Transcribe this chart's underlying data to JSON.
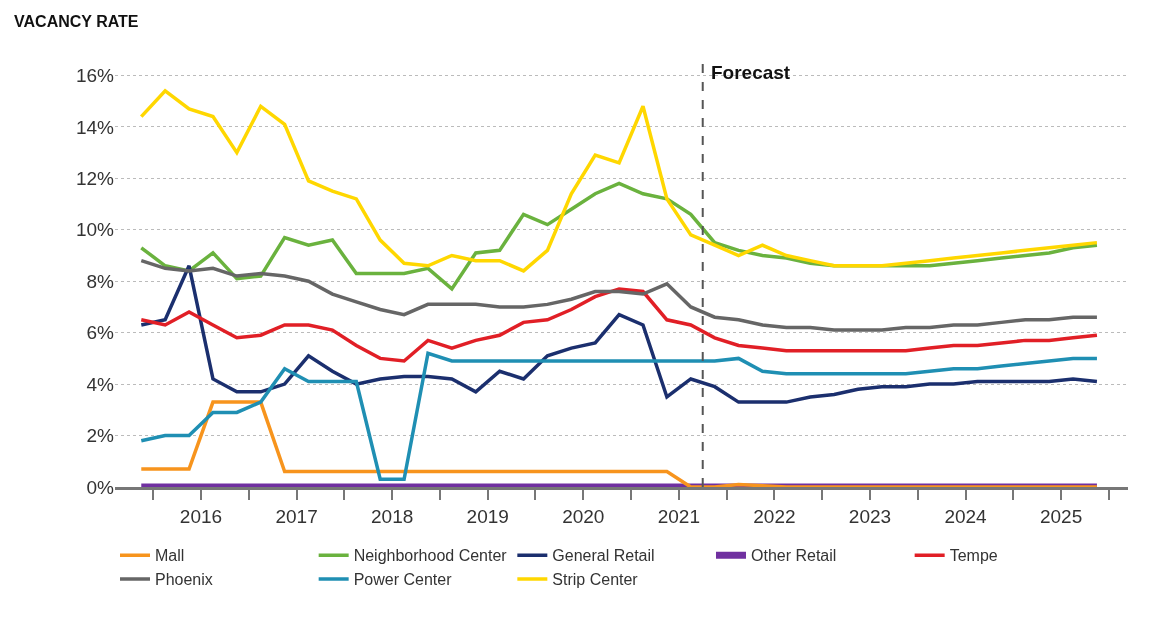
{
  "chart_data": {
    "type": "line",
    "title": "VACANCY RATE",
    "x": [
      2015.875,
      2016.125,
      2016.375,
      2016.625,
      2016.875,
      2017.125,
      2017.375,
      2017.625,
      2017.875,
      2018.125,
      2018.375,
      2018.625,
      2018.875,
      2019.125,
      2019.375,
      2019.625,
      2019.875,
      2020.125,
      2020.375,
      2020.625,
      2020.875,
      2021.125,
      2021.375,
      2021.625,
      2021.875,
      2022.125,
      2022.375,
      2022.625,
      2022.875,
      2023.125,
      2023.375,
      2023.625,
      2023.875,
      2024.125,
      2024.375,
      2024.625,
      2024.875,
      2025.125,
      2025.375,
      2025.625,
      2025.875
    ],
    "series": [
      {
        "name": "Mall",
        "color": "#f7941d",
        "values": [
          0.7,
          0.7,
          0.7,
          3.3,
          3.3,
          3.3,
          0.6,
          0.6,
          0.6,
          0.6,
          0.6,
          0.6,
          0.6,
          0.6,
          0.6,
          0.6,
          0.6,
          0.6,
          0.6,
          0.6,
          0.6,
          0.6,
          0.6,
          0,
          0,
          0.1,
          0.05,
          0,
          0,
          0,
          0,
          0,
          0,
          0,
          0,
          0,
          0,
          0,
          0,
          0,
          0
        ]
      },
      {
        "name": "Neighborhood Center",
        "color": "#6ab23e",
        "values": [
          9.3,
          8.6,
          8.4,
          9.1,
          8.1,
          8.2,
          9.7,
          9.4,
          9.6,
          8.3,
          8.3,
          8.3,
          8.5,
          7.7,
          9.1,
          9.2,
          10.6,
          10.2,
          10.8,
          11.4,
          11.8,
          11.4,
          11.2,
          10.6,
          9.5,
          9.2,
          9.0,
          8.9,
          8.7,
          8.6,
          8.6,
          8.6,
          8.6,
          8.6,
          8.7,
          8.8,
          8.9,
          9.0,
          9.1,
          9.3,
          9.4
        ]
      },
      {
        "name": "General Retail",
        "color": "#1b2f6e",
        "values": [
          6.3,
          6.5,
          8.6,
          4.2,
          3.7,
          3.7,
          4.0,
          5.1,
          4.5,
          4.0,
          4.2,
          4.3,
          4.3,
          4.2,
          3.7,
          4.5,
          4.2,
          5.1,
          5.4,
          5.6,
          6.7,
          6.3,
          3.5,
          4.2,
          3.9,
          3.3,
          3.3,
          3.3,
          3.5,
          3.6,
          3.8,
          3.9,
          3.9,
          4.0,
          4.0,
          4.1,
          4.1,
          4.1,
          4.1,
          4.2,
          4.1
        ]
      },
      {
        "name": "Other Retail",
        "color": "#7030a0",
        "values": [
          0,
          0,
          0,
          0,
          0,
          0,
          0,
          0,
          0,
          0,
          0,
          0,
          0,
          0,
          0,
          0,
          0,
          0,
          0,
          0,
          0,
          0,
          0,
          0,
          0,
          0,
          0,
          0,
          0,
          0,
          0,
          0,
          0,
          0,
          0,
          0,
          0,
          0,
          0,
          0,
          0
        ]
      },
      {
        "name": "Tempe",
        "color": "#e11f26",
        "values": [
          6.5,
          6.3,
          6.8,
          6.3,
          5.8,
          5.9,
          6.3,
          6.3,
          6.1,
          5.5,
          5.0,
          4.9,
          5.7,
          5.4,
          5.7,
          5.9,
          6.4,
          6.5,
          6.9,
          7.4,
          7.7,
          7.6,
          6.5,
          6.3,
          5.8,
          5.5,
          5.4,
          5.3,
          5.3,
          5.3,
          5.3,
          5.3,
          5.3,
          5.4,
          5.5,
          5.5,
          5.6,
          5.7,
          5.7,
          5.8,
          5.9
        ]
      },
      {
        "name": "Phoenix",
        "color": "#666666",
        "values": [
          8.8,
          8.5,
          8.4,
          8.5,
          8.2,
          8.3,
          8.2,
          8.0,
          7.5,
          7.2,
          6.9,
          6.7,
          7.1,
          7.1,
          7.1,
          7.0,
          7.0,
          7.1,
          7.3,
          7.6,
          7.6,
          7.5,
          7.9,
          7.0,
          6.6,
          6.5,
          6.3,
          6.2,
          6.2,
          6.1,
          6.1,
          6.1,
          6.2,
          6.2,
          6.3,
          6.3,
          6.4,
          6.5,
          6.5,
          6.6,
          6.6
        ]
      },
      {
        "name": "Power Center",
        "color": "#1f8fb3",
        "values": [
          1.8,
          2.0,
          2.0,
          2.9,
          2.9,
          3.3,
          4.6,
          4.1,
          4.1,
          4.1,
          0.3,
          0.3,
          5.2,
          4.9,
          4.9,
          4.9,
          4.9,
          4.9,
          4.9,
          4.9,
          4.9,
          4.9,
          4.9,
          4.9,
          4.9,
          5.0,
          4.5,
          4.4,
          4.4,
          4.4,
          4.4,
          4.4,
          4.4,
          4.5,
          4.6,
          4.6,
          4.7,
          4.8,
          4.9,
          5.0,
          5.0
        ]
      },
      {
        "name": "Strip Center",
        "color": "#ffd700",
        "values": [
          14.4,
          15.4,
          14.7,
          14.4,
          13.0,
          14.8,
          14.1,
          11.9,
          11.5,
          11.2,
          9.6,
          8.7,
          8.6,
          9.0,
          8.8,
          8.8,
          8.4,
          9.2,
          11.4,
          12.9,
          12.6,
          14.8,
          11.2,
          9.8,
          9.4,
          9.0,
          9.4,
          9.0,
          8.8,
          8.6,
          8.6,
          8.6,
          8.7,
          8.8,
          8.9,
          9.0,
          9.1,
          9.2,
          9.3,
          9.4,
          9.5
        ]
      }
    ],
    "xlim": [
      2015.6,
      2026.2
    ],
    "xticks": [
      {
        "value": 2016,
        "label": null
      },
      {
        "value": 2016.5,
        "label": "2016"
      },
      {
        "value": 2017,
        "label": null
      },
      {
        "value": 2017.5,
        "label": "2017"
      },
      {
        "value": 2018,
        "label": null
      },
      {
        "value": 2018.5,
        "label": "2018"
      },
      {
        "value": 2019,
        "label": null
      },
      {
        "value": 2019.5,
        "label": "2019"
      },
      {
        "value": 2020,
        "label": null
      },
      {
        "value": 2020.5,
        "label": "2020"
      },
      {
        "value": 2021,
        "label": null
      },
      {
        "value": 2021.5,
        "label": "2021"
      },
      {
        "value": 2022,
        "label": null
      },
      {
        "value": 2022.5,
        "label": "2022"
      },
      {
        "value": 2023,
        "label": null
      },
      {
        "value": 2023.5,
        "label": "2023"
      },
      {
        "value": 2024,
        "label": null
      },
      {
        "value": 2024.5,
        "label": "2024"
      },
      {
        "value": 2025,
        "label": null
      },
      {
        "value": 2025.5,
        "label": "2025"
      },
      {
        "value": 2026,
        "label": null
      }
    ],
    "ylim": [
      0,
      16.6
    ],
    "yticks": [
      {
        "value": 0,
        "label": "0%"
      },
      {
        "value": 2,
        "label": "2%"
      },
      {
        "value": 4,
        "label": "4%"
      },
      {
        "value": 6,
        "label": "6%"
      },
      {
        "value": 8,
        "label": "8%"
      },
      {
        "value": 10,
        "label": "10%"
      },
      {
        "value": 12,
        "label": "12%"
      },
      {
        "value": 14,
        "label": "14%"
      },
      {
        "value": 16,
        "label": "16%"
      }
    ],
    "ref_lines": [
      {
        "axis": "x",
        "value": 2021.75,
        "label": "Forecast",
        "color": "#555555",
        "line_style": "dashed"
      }
    ],
    "grid": "y",
    "legend": "bottom",
    "marker": "none",
    "line_style": "solid"
  }
}
